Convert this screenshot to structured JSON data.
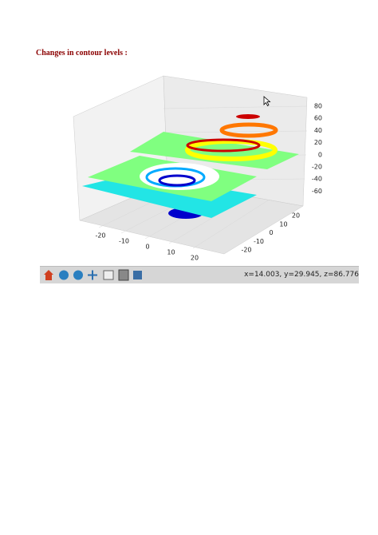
{
  "heading": "Changes in contour levels :",
  "figure": {
    "x_ticks": [
      -20,
      -10,
      0,
      10,
      20
    ],
    "y_ticks": [
      -20,
      -10,
      0,
      10,
      20
    ],
    "z_ticks": [
      80,
      60,
      40,
      20,
      0,
      -20,
      -40,
      -60
    ],
    "status": "x=14.003, y=29.945, z=86.776"
  }
}
